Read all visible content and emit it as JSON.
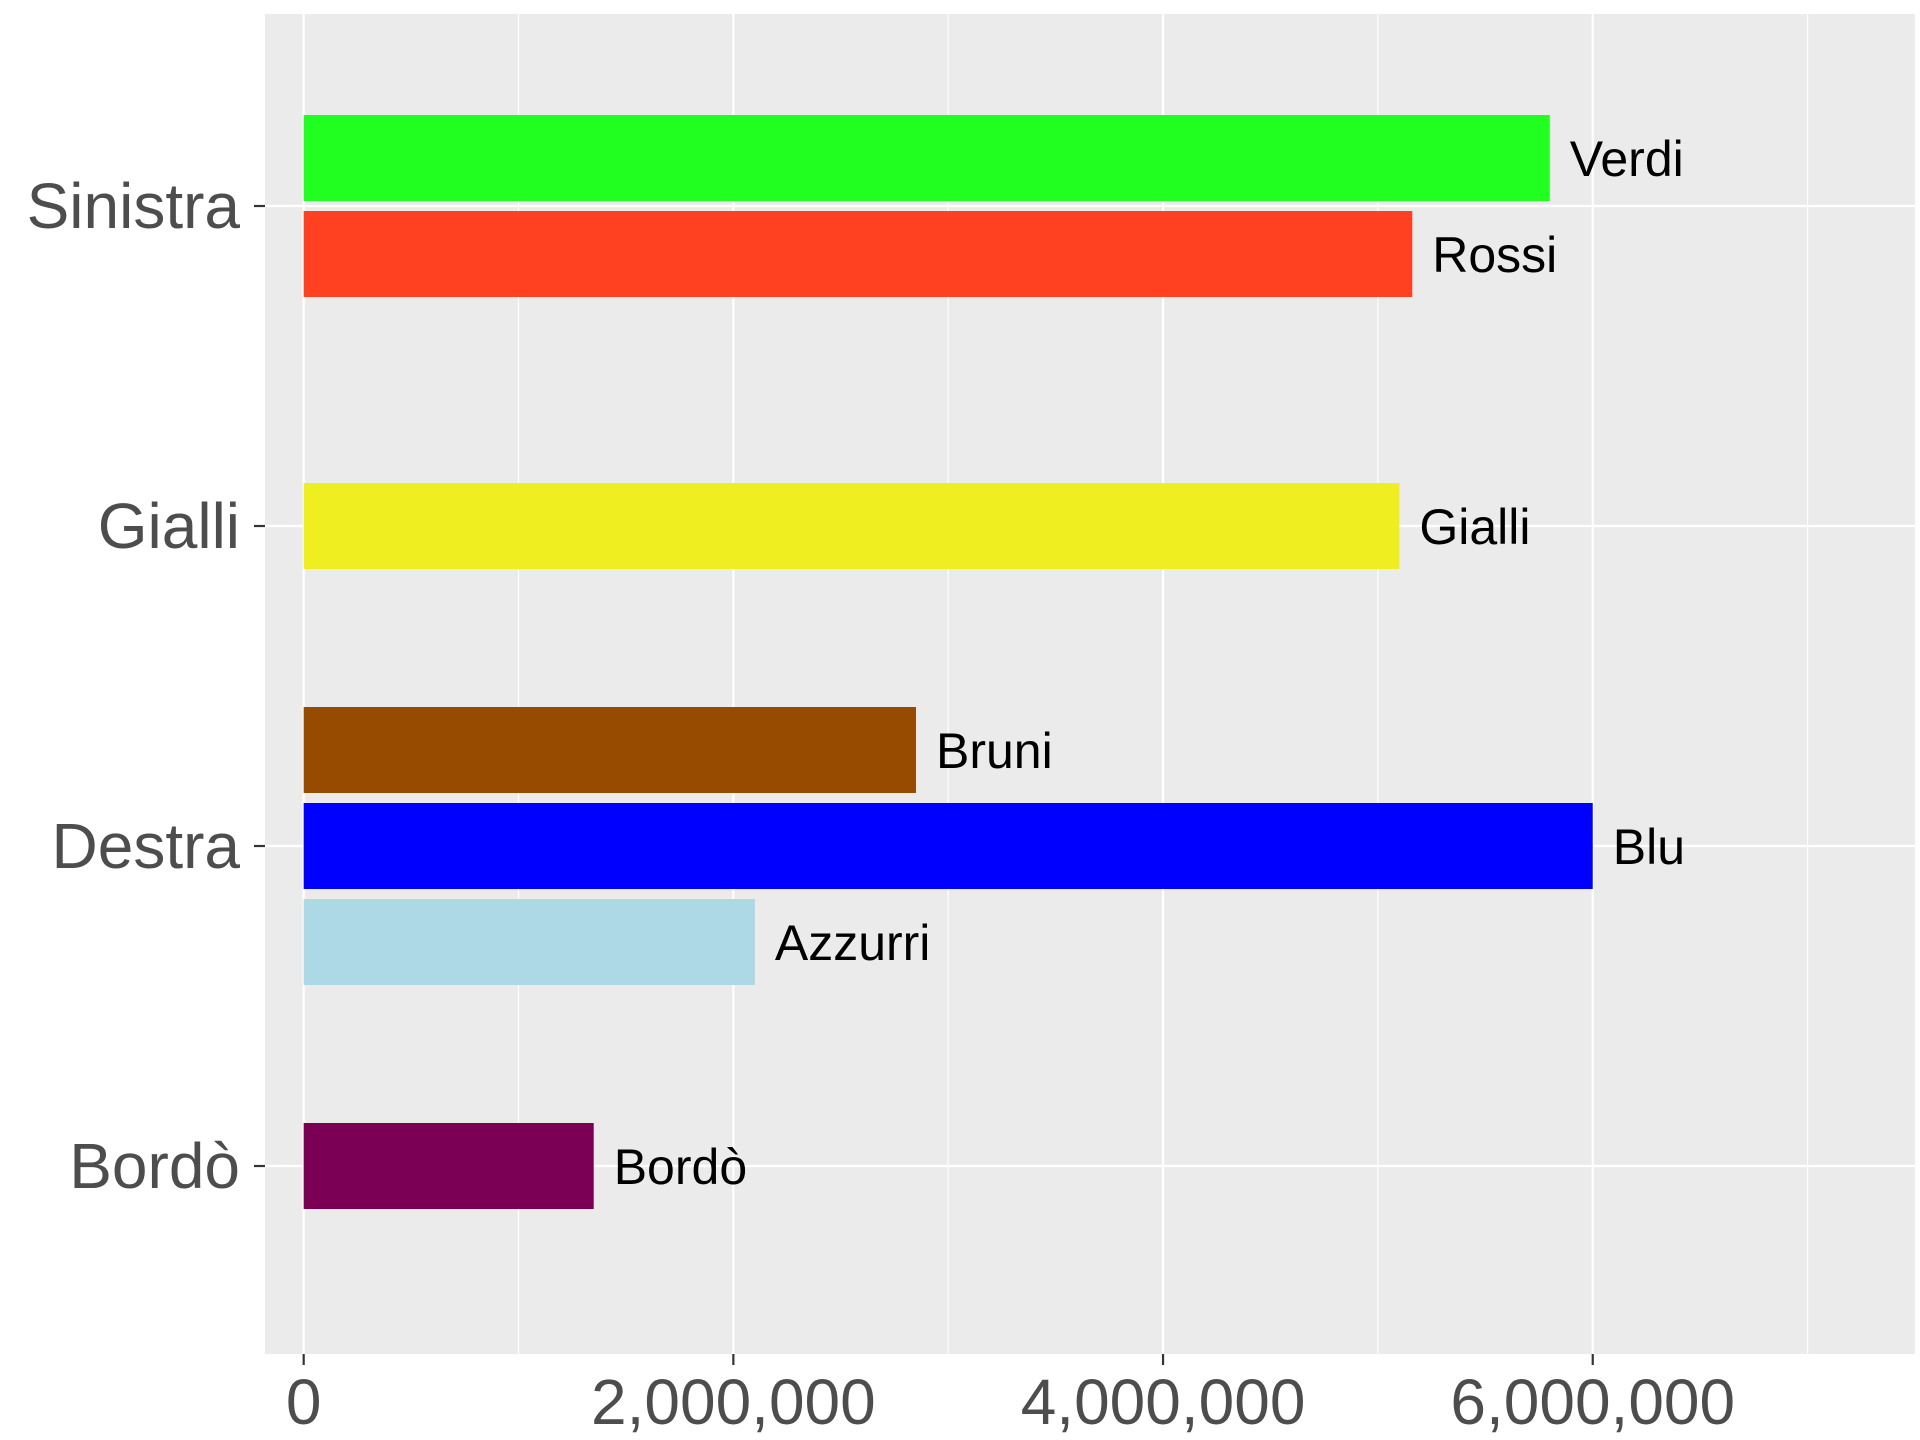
{
  "chart_data": {
    "type": "bar",
    "orientation": "horizontal",
    "title": "",
    "xlabel": "",
    "ylabel": "",
    "xlim": [
      -180000,
      7500000
    ],
    "x_ticks": [
      {
        "value": 0,
        "label": "0"
      },
      {
        "value": 2000000,
        "label": "2,000,000"
      },
      {
        "value": 4000000,
        "label": "4,000,000"
      },
      {
        "value": 6000000,
        "label": "6,000,000"
      }
    ],
    "x_minor_ticks": [
      1000000,
      3000000,
      5000000,
      7000000
    ],
    "categories": [
      "Sinistra",
      "Gialli",
      "Destra",
      "Bordò"
    ],
    "bars": [
      {
        "category": "Sinistra",
        "label": "Verdi",
        "value": 5800000,
        "color": "#21FF21"
      },
      {
        "category": "Sinistra",
        "label": "Rossi",
        "value": 5160000,
        "color": "#FF4021"
      },
      {
        "category": "Gialli",
        "label": "Gialli",
        "value": 5100000,
        "color": "#EEEE21"
      },
      {
        "category": "Destra",
        "label": "Bruni",
        "value": 2850000,
        "color": "#964B00"
      },
      {
        "category": "Destra",
        "label": "Blu",
        "value": 6000000,
        "color": "#0000FF"
      },
      {
        "category": "Destra",
        "label": "Azzurri",
        "value": 2100000,
        "color": "#ADD8E6"
      },
      {
        "category": "Bordò",
        "label": "Bordò",
        "value": 1350000,
        "color": "#7B0055"
      }
    ],
    "grid": true,
    "legend": "none"
  }
}
